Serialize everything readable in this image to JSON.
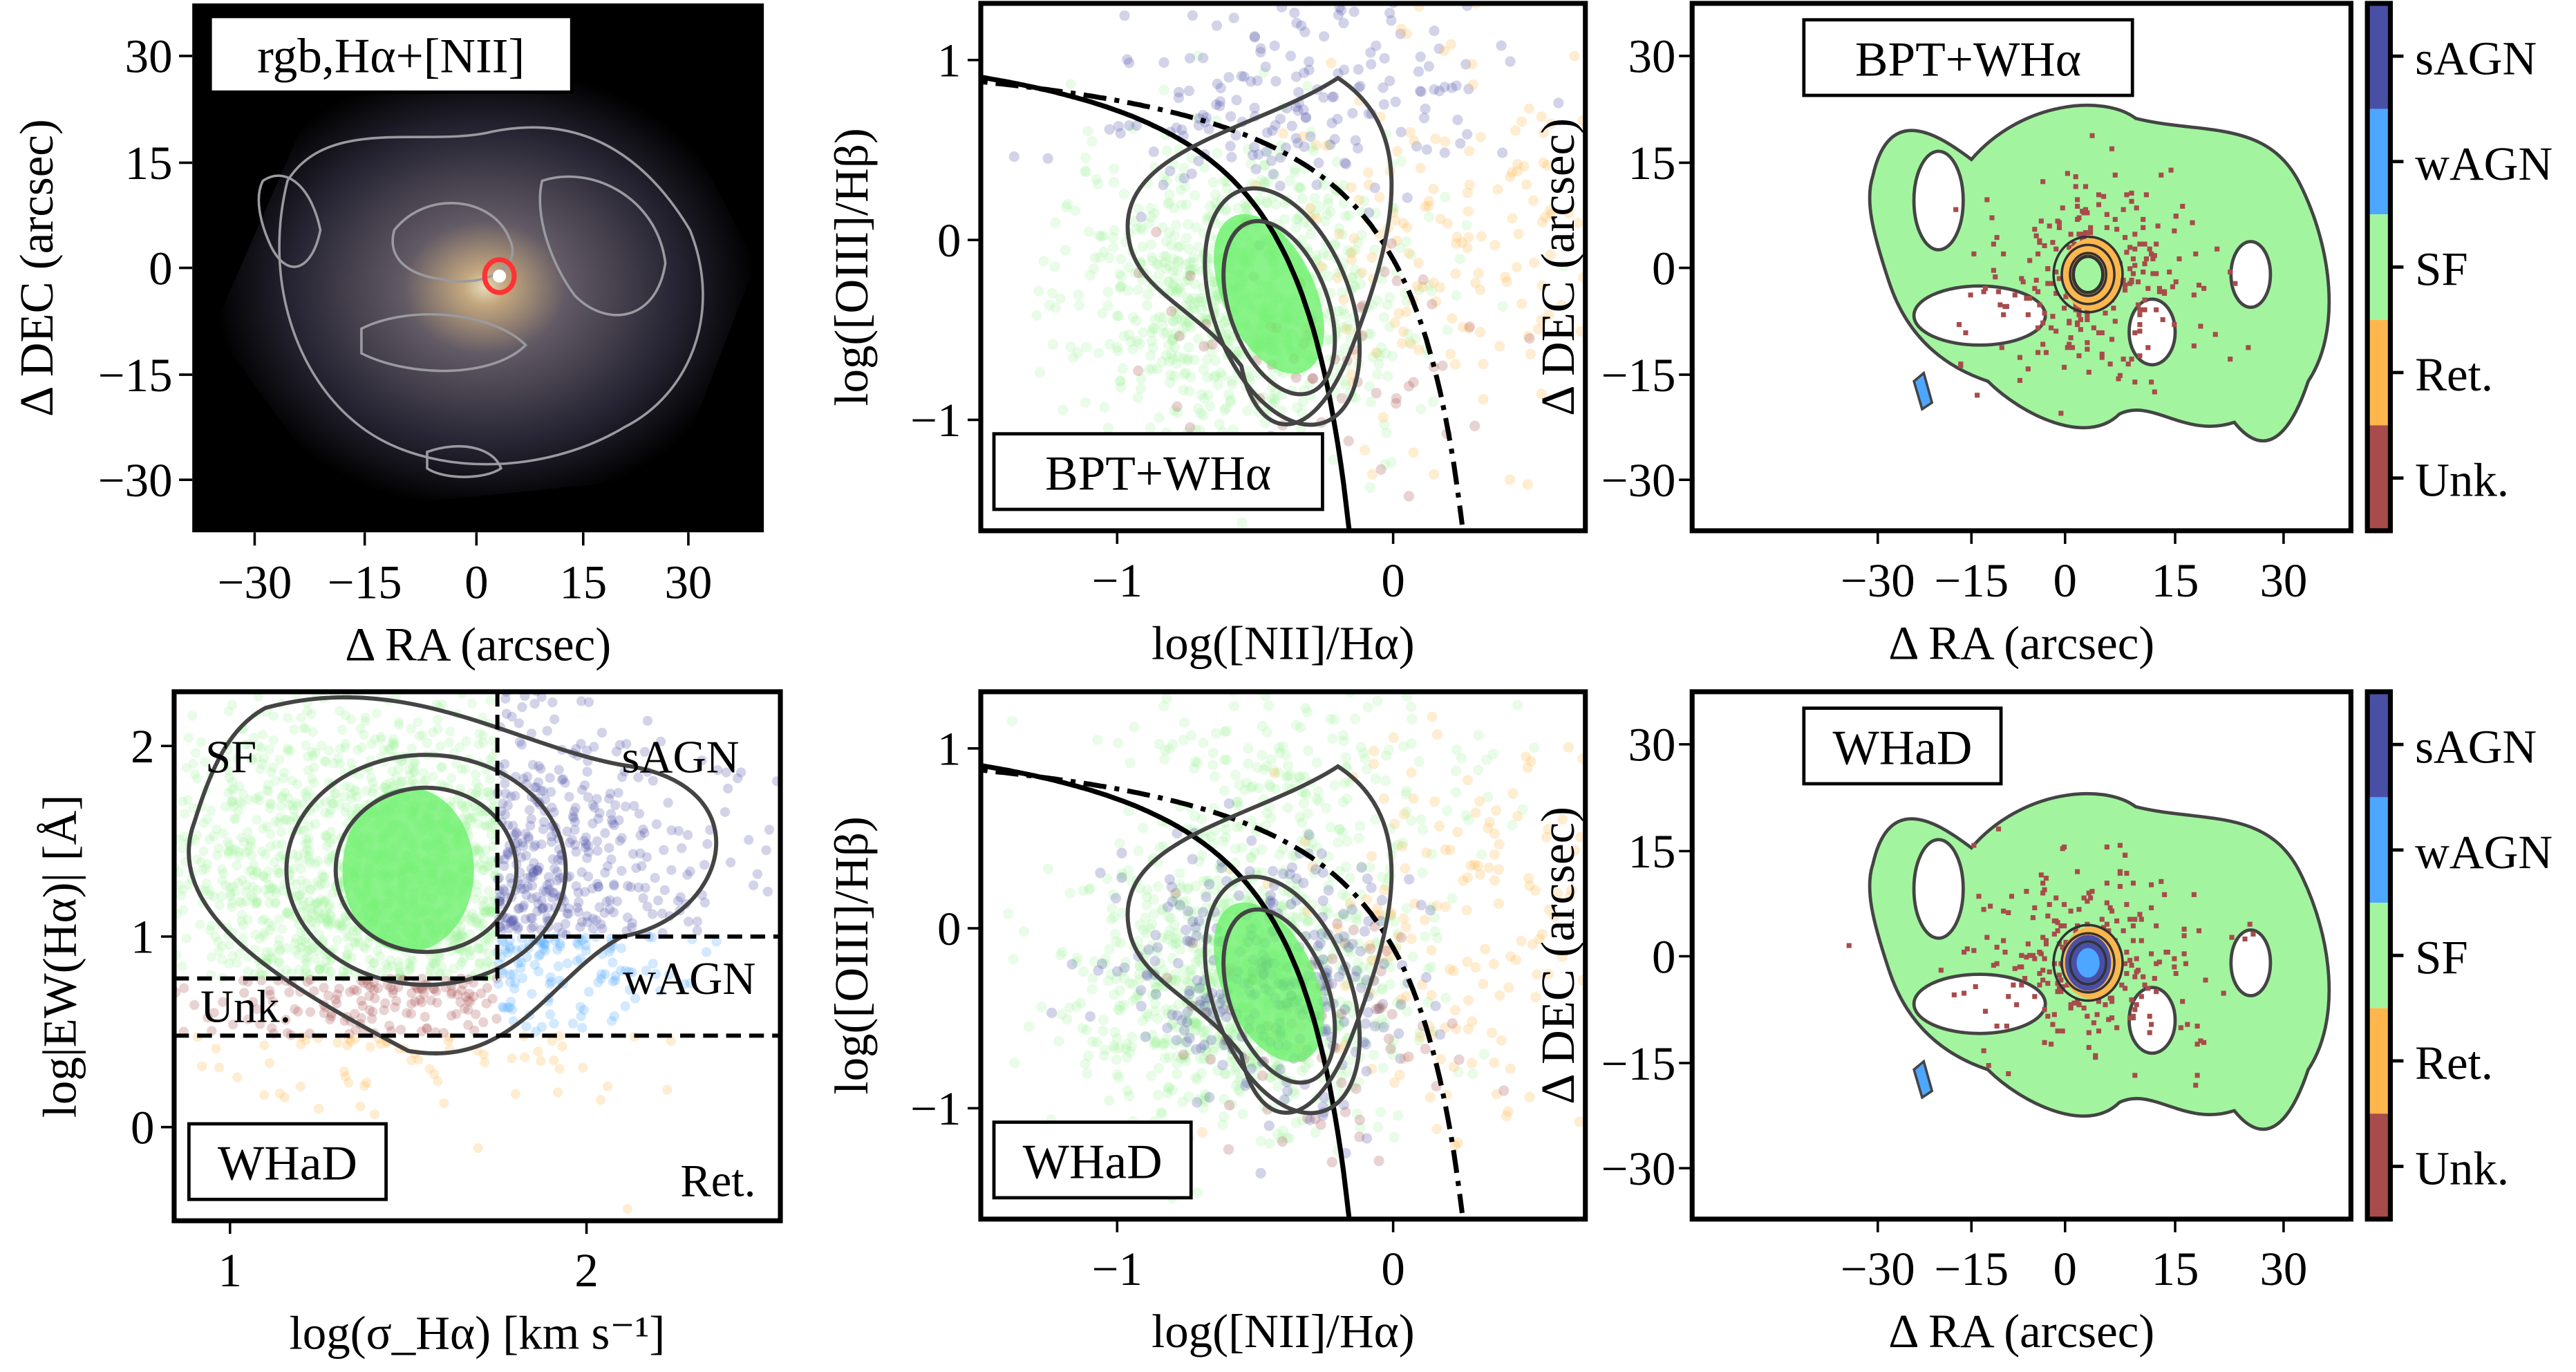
{
  "colors": {
    "sAGN": "#4a4fa6",
    "wAGN": "#4da6ff",
    "SF": "#a2f59e",
    "Ret.": "#ffb74d",
    "Unk.": "#a84b4b",
    "contour": "#444444"
  },
  "chart_data": [
    {
      "type": "image",
      "panel_label": "rgb,Hα+[NII]",
      "xlabel": "Δ RA (arcsec)",
      "ylabel": "Δ DEC (arcsec)",
      "xticks": [
        "−30",
        "−15",
        "0",
        "15",
        "30"
      ],
      "yticks": [
        "30",
        "15",
        "0",
        "−15",
        "−30"
      ],
      "xlim": [
        -38,
        40
      ],
      "ylim": [
        -38,
        38
      ]
    },
    {
      "type": "scatter",
      "panel_label": "BPT+WHα",
      "xlabel": "log([NII]/Hα)",
      "ylabel": "log([OIII]/Hβ)",
      "xticks": [
        "−1",
        "0"
      ],
      "yticks": [
        "1",
        "0",
        "−1"
      ],
      "xlim": [
        -1.5,
        0.7
      ],
      "ylim": [
        -1.6,
        1.3
      ],
      "series_classes": [
        "SF",
        "sAGN",
        "Ret.",
        "Unk."
      ],
      "density_peak": [
        -0.45,
        -0.3
      ],
      "curves": [
        "Kauffmann (solid)",
        "Kewley (dash-dot)"
      ]
    },
    {
      "type": "heatmap",
      "panel_label": "BPT+WHα",
      "xlabel": "Δ RA (arcsec)",
      "ylabel": "Δ DEC (arcsec)",
      "xticks": [
        "−30",
        "−15",
        "0",
        "15",
        "30"
      ],
      "yticks": [
        "30",
        "15",
        "0",
        "−15",
        "−30"
      ],
      "colorbar": [
        "sAGN",
        "wAGN",
        "SF",
        "Ret.",
        "Unk."
      ]
    },
    {
      "type": "scatter",
      "panel_label": "WHaD",
      "xlabel": "log(σ_Hα) [km s⁻¹]",
      "ylabel": "log|EW(Hα)| [Å]",
      "xticks": [
        "1",
        "2"
      ],
      "yticks": [
        "2",
        "1",
        "0"
      ],
      "xlim": [
        0.85,
        2.55
      ],
      "ylim": [
        -0.3,
        2.3
      ],
      "region_labels": [
        "SF",
        "sAGN",
        "wAGN",
        "Unk.",
        "Ret."
      ],
      "boundaries": {
        "sigma": 1.75,
        "ew_agn": 1.0,
        "ew_sf": 0.78,
        "ew_ret": 0.48
      }
    },
    {
      "type": "scatter",
      "panel_label": "WHaD",
      "xlabel": "log([NII]/Hα)",
      "ylabel": "log([OIII]/Hβ)",
      "xticks": [
        "−1",
        "0"
      ],
      "yticks": [
        "1",
        "0",
        "−1"
      ],
      "xlim": [
        -1.5,
        0.7
      ],
      "ylim": [
        -1.6,
        1.3
      ],
      "density_peak": [
        -0.42,
        -0.3
      ]
    },
    {
      "type": "heatmap",
      "panel_label": "WHaD",
      "xlabel": "Δ RA (arcsec)",
      "ylabel": "Δ DEC (arcsec)",
      "xticks": [
        "−30",
        "−15",
        "0",
        "15",
        "30"
      ],
      "yticks": [
        "30",
        "15",
        "0",
        "−15",
        "−30"
      ],
      "colorbar": [
        "sAGN",
        "wAGN",
        "SF",
        "Ret.",
        "Unk."
      ]
    }
  ]
}
